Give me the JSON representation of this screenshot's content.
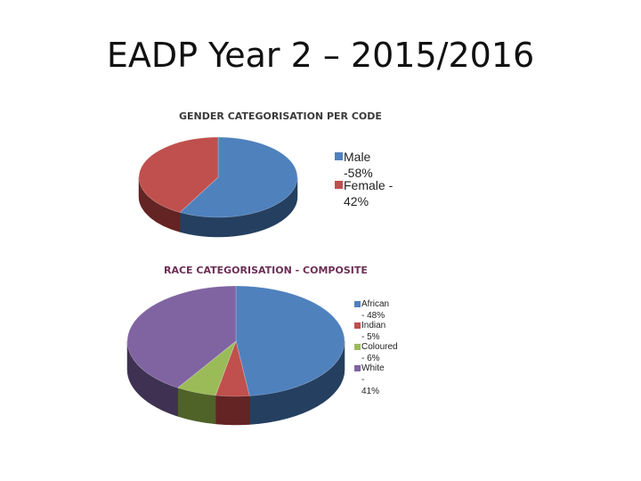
{
  "page": {
    "title": "EADP Year 2 – 2015/2016"
  },
  "chart_data": [
    {
      "type": "pie",
      "title": "GENDER CATEGORISATION PER CODE",
      "categories": [
        "Male -58%",
        "Female - 42%"
      ],
      "values": [
        58,
        42
      ],
      "colors": [
        "#4f81bd",
        "#c0504d"
      ],
      "side_colors": [
        "#243f60",
        "#632423"
      ],
      "legend_position": "right"
    },
    {
      "type": "pie",
      "title": "RACE CATEGORISATION - COMPOSITE",
      "categories": [
        "African - 48%",
        "Indian - 5%",
        "Coloured - 6%",
        "White - 41%"
      ],
      "values": [
        48,
        5,
        6,
        41
      ],
      "colors": [
        "#4f81bd",
        "#c0504d",
        "#9bbb59",
        "#8064a2"
      ],
      "side_colors": [
        "#243f60",
        "#632423",
        "#4f6228",
        "#3f3151"
      ],
      "legend_position": "right"
    }
  ]
}
